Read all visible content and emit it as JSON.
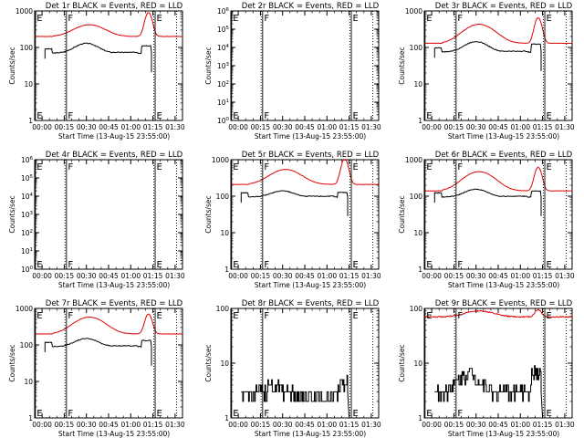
{
  "colors": {
    "events": "#000000",
    "lld": "#e00000",
    "background": "#ffffff",
    "axis": "#000000"
  },
  "shared": {
    "xlabel": "Start Time (13-Aug-15 23:55:00)",
    "ylabel": "Counts/sec",
    "x_tick_labels": [
      "00:00",
      "00:15",
      "00:30",
      "00:45",
      "01:00",
      "01:15",
      "01:30"
    ],
    "x_tick_minutes": [
      5,
      20,
      35,
      50,
      65,
      80,
      95
    ],
    "xlim_minutes": [
      0,
      100
    ],
    "event_lines": [
      {
        "label": "E",
        "minute": 0.5,
        "style": "solid"
      },
      {
        "label": "F",
        "minute": 20.5,
        "style": "dotted"
      },
      {
        "label": "",
        "minute": 21.5,
        "style": "solid"
      },
      {
        "label": "",
        "minute": 80.5,
        "style": "dotted"
      },
      {
        "label": "E",
        "minute": 81.5,
        "style": "solid"
      },
      {
        "label": "",
        "minute": 96,
        "style": "dotted"
      }
    ]
  },
  "chart_data": [
    {
      "type": "line",
      "title": "Det 1r BLACK = Events, RED = LLD",
      "yscale": "log",
      "ylim": [
        1,
        1000
      ],
      "yticks": [
        1,
        10,
        100,
        1000
      ],
      "ytick_labels": [
        "1",
        "10",
        "100",
        "1000"
      ],
      "markers": [
        "E",
        "F",
        "E"
      ],
      "series": [
        {
          "name": "Events",
          "color": "#000000",
          "shape": "events",
          "params": {
            "base": 70,
            "bump": 60,
            "noise": 0.05,
            "start": 7,
            "end": 79
          }
        },
        {
          "name": "LLD",
          "color": "#e00000",
          "shape": "lld",
          "params": {
            "base": 200,
            "bump": 220,
            "peak": 900,
            "noise": 0.02,
            "start": 0,
            "end": 100
          }
        }
      ]
    },
    {
      "type": "line",
      "title": "Det 2r BLACK = Events, RED = LLD",
      "yscale": "log",
      "ylim": [
        1,
        1000000
      ],
      "yticks": [
        1,
        10,
        100,
        1000,
        10000,
        100000,
        1000000
      ],
      "ytick_labels": [
        "10^0",
        "10^1",
        "10^2",
        "10^3",
        "10^4",
        "10^5",
        "10^6"
      ],
      "markers": [
        "E",
        "F",
        "E"
      ],
      "series": []
    },
    {
      "type": "line",
      "title": "Det 3r BLACK = Events, RED = LLD",
      "yscale": "log",
      "ylim": [
        1,
        1000
      ],
      "yticks": [
        1,
        10,
        100,
        1000
      ],
      "ytick_labels": [
        "1",
        "10",
        "100",
        "1000"
      ],
      "markers": [
        "E",
        "F",
        "E"
      ],
      "series": [
        {
          "name": "Events",
          "color": "#000000",
          "shape": "events",
          "params": {
            "base": 75,
            "bump": 70,
            "noise": 0.05,
            "start": 7,
            "end": 79
          }
        },
        {
          "name": "LLD",
          "color": "#e00000",
          "shape": "lld",
          "params": {
            "base": 130,
            "bump": 300,
            "peak": 650,
            "noise": 0.02,
            "start": 0,
            "end": 100
          }
        }
      ]
    },
    {
      "type": "line",
      "title": "Det 4r BLACK = Events, RED = LLD",
      "yscale": "log",
      "ylim": [
        1,
        1000000
      ],
      "yticks": [
        1,
        10,
        100,
        1000,
        10000,
        100000,
        1000000
      ],
      "ytick_labels": [
        "10^0",
        "10^1",
        "10^2",
        "10^3",
        "10^4",
        "10^5",
        "10^6"
      ],
      "markers": [
        "E",
        "F",
        "E"
      ],
      "series": []
    },
    {
      "type": "line",
      "title": "Det 5r BLACK = Events, RED = LLD",
      "yscale": "log",
      "ylim": [
        1,
        1000
      ],
      "yticks": [
        1,
        10,
        100,
        1000
      ],
      "ytick_labels": [
        "1",
        "10",
        "100",
        "1000"
      ],
      "markers": [
        "E",
        "F",
        "E"
      ],
      "series": [
        {
          "name": "Events",
          "color": "#000000",
          "shape": "events",
          "params": {
            "base": 95,
            "bump": 45,
            "noise": 0.05,
            "start": 7,
            "end": 79
          }
        },
        {
          "name": "LLD",
          "color": "#e00000",
          "shape": "lld",
          "params": {
            "base": 210,
            "bump": 330,
            "peak": 1050,
            "noise": 0.02,
            "start": 0,
            "end": 100
          }
        }
      ]
    },
    {
      "type": "line",
      "title": "Det 6r BLACK = Events, RED = LLD",
      "yscale": "log",
      "ylim": [
        1,
        1000
      ],
      "yticks": [
        1,
        10,
        100,
        1000
      ],
      "ytick_labels": [
        "1",
        "10",
        "100",
        "1000"
      ],
      "markers": [
        "E",
        "F",
        "E"
      ],
      "series": [
        {
          "name": "Events",
          "color": "#000000",
          "shape": "events",
          "params": {
            "base": 95,
            "bump": 60,
            "noise": 0.05,
            "start": 7,
            "end": 79
          }
        },
        {
          "name": "LLD",
          "color": "#e00000",
          "shape": "lld",
          "params": {
            "base": 140,
            "bump": 330,
            "peak": 620,
            "noise": 0.02,
            "start": 0,
            "end": 100
          }
        }
      ]
    },
    {
      "type": "line",
      "title": "Det 7r BLACK = Events, RED = LLD",
      "yscale": "log",
      "ylim": [
        1,
        1000
      ],
      "yticks": [
        1,
        10,
        100,
        1000
      ],
      "ytick_labels": [
        "1",
        "10",
        "100",
        "1000"
      ],
      "markers": [
        "E",
        "F",
        "E"
      ],
      "series": [
        {
          "name": "Events",
          "color": "#000000",
          "shape": "events",
          "params": {
            "base": 90,
            "bump": 60,
            "noise": 0.05,
            "start": 7,
            "end": 79
          }
        },
        {
          "name": "LLD",
          "color": "#e00000",
          "shape": "lld",
          "params": {
            "base": 200,
            "bump": 380,
            "peak": 700,
            "noise": 0.02,
            "start": 0,
            "end": 100
          }
        }
      ]
    },
    {
      "type": "line",
      "title": "Det 8r BLACK = Events, RED = LLD",
      "yscale": "log",
      "ylim": [
        1,
        100
      ],
      "yticks": [
        1,
        10,
        100
      ],
      "ytick_labels": [
        "1",
        "10",
        "100"
      ],
      "markers": [
        "E",
        "F",
        "E"
      ],
      "series": [
        {
          "name": "Events",
          "color": "#000000",
          "shape": "noisy",
          "params": {
            "base": 2.5,
            "bump": 1.5,
            "noise": 0.35,
            "start": 7,
            "end": 79
          }
        }
      ]
    },
    {
      "type": "line",
      "title": "Det 9r BLACK = Events, RED = LLD",
      "yscale": "log",
      "ylim": [
        1,
        100
      ],
      "yticks": [
        1,
        10,
        100
      ],
      "ytick_labels": [
        "1",
        "10",
        "100"
      ],
      "markers": [
        "E",
        "F",
        "E"
      ],
      "series": [
        {
          "name": "Events",
          "color": "#000000",
          "shape": "noisy",
          "params": {
            "base": 3,
            "bump": 3.5,
            "noise": 0.3,
            "start": 7,
            "end": 79
          }
        },
        {
          "name": "LLD",
          "color": "#e00000",
          "shape": "lld",
          "params": {
            "base": 70,
            "bump": 20,
            "peak": 95,
            "noise": 0.05,
            "start": 0,
            "end": 100
          }
        }
      ]
    }
  ]
}
